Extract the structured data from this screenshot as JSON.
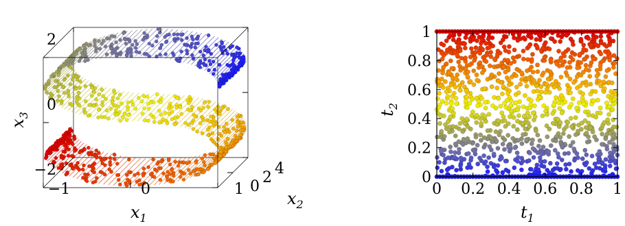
{
  "chart_data": [
    {
      "type": "scatter3d",
      "title": "",
      "description_series": "S-curve manifold sampled with points; surface strips connect points across x2",
      "xlabel": "x",
      "xlabel_sub": "1",
      "ylabel": "x",
      "ylabel_sub": "2",
      "zlabel": "x",
      "zlabel_sub": "3",
      "xlim": [
        -1,
        1
      ],
      "ylim": [
        0,
        4
      ],
      "zlim": [
        -2,
        2
      ],
      "xticks": [
        "−1",
        "0",
        "1"
      ],
      "yticks": [
        "0",
        "2",
        "4"
      ],
      "zticks": [
        "−2",
        "0",
        "2"
      ],
      "colormap": [
        "#1a1aff",
        "#6b6bb0",
        "#b0b04a",
        "#f0f000",
        "#f5a000",
        "#f05000",
        "#e00000"
      ],
      "curve": {
        "param": "t1",
        "t_range": [
          0,
          1
        ],
        "x2_range": [
          0,
          4
        ],
        "n_points": 900
      }
    },
    {
      "type": "scatter",
      "title": "",
      "xlabel": "t",
      "xlabel_sub": "1",
      "ylabel": "t",
      "ylabel_sub": "2",
      "xlim": [
        0,
        1
      ],
      "ylim": [
        0,
        1
      ],
      "xticks": [
        "0",
        "0.2",
        "0.4",
        "0.6",
        "0.8",
        "1"
      ],
      "yticks": [
        "0",
        "0.2",
        "0.4",
        "0.6",
        "0.8",
        "1"
      ],
      "colormap": [
        "#1a1aff",
        "#6b6bb0",
        "#b0b04a",
        "#f0f000",
        "#f5a000",
        "#f05000",
        "#e00000"
      ],
      "n_points": 1100,
      "dense_rows": [
        0,
        1
      ]
    }
  ]
}
